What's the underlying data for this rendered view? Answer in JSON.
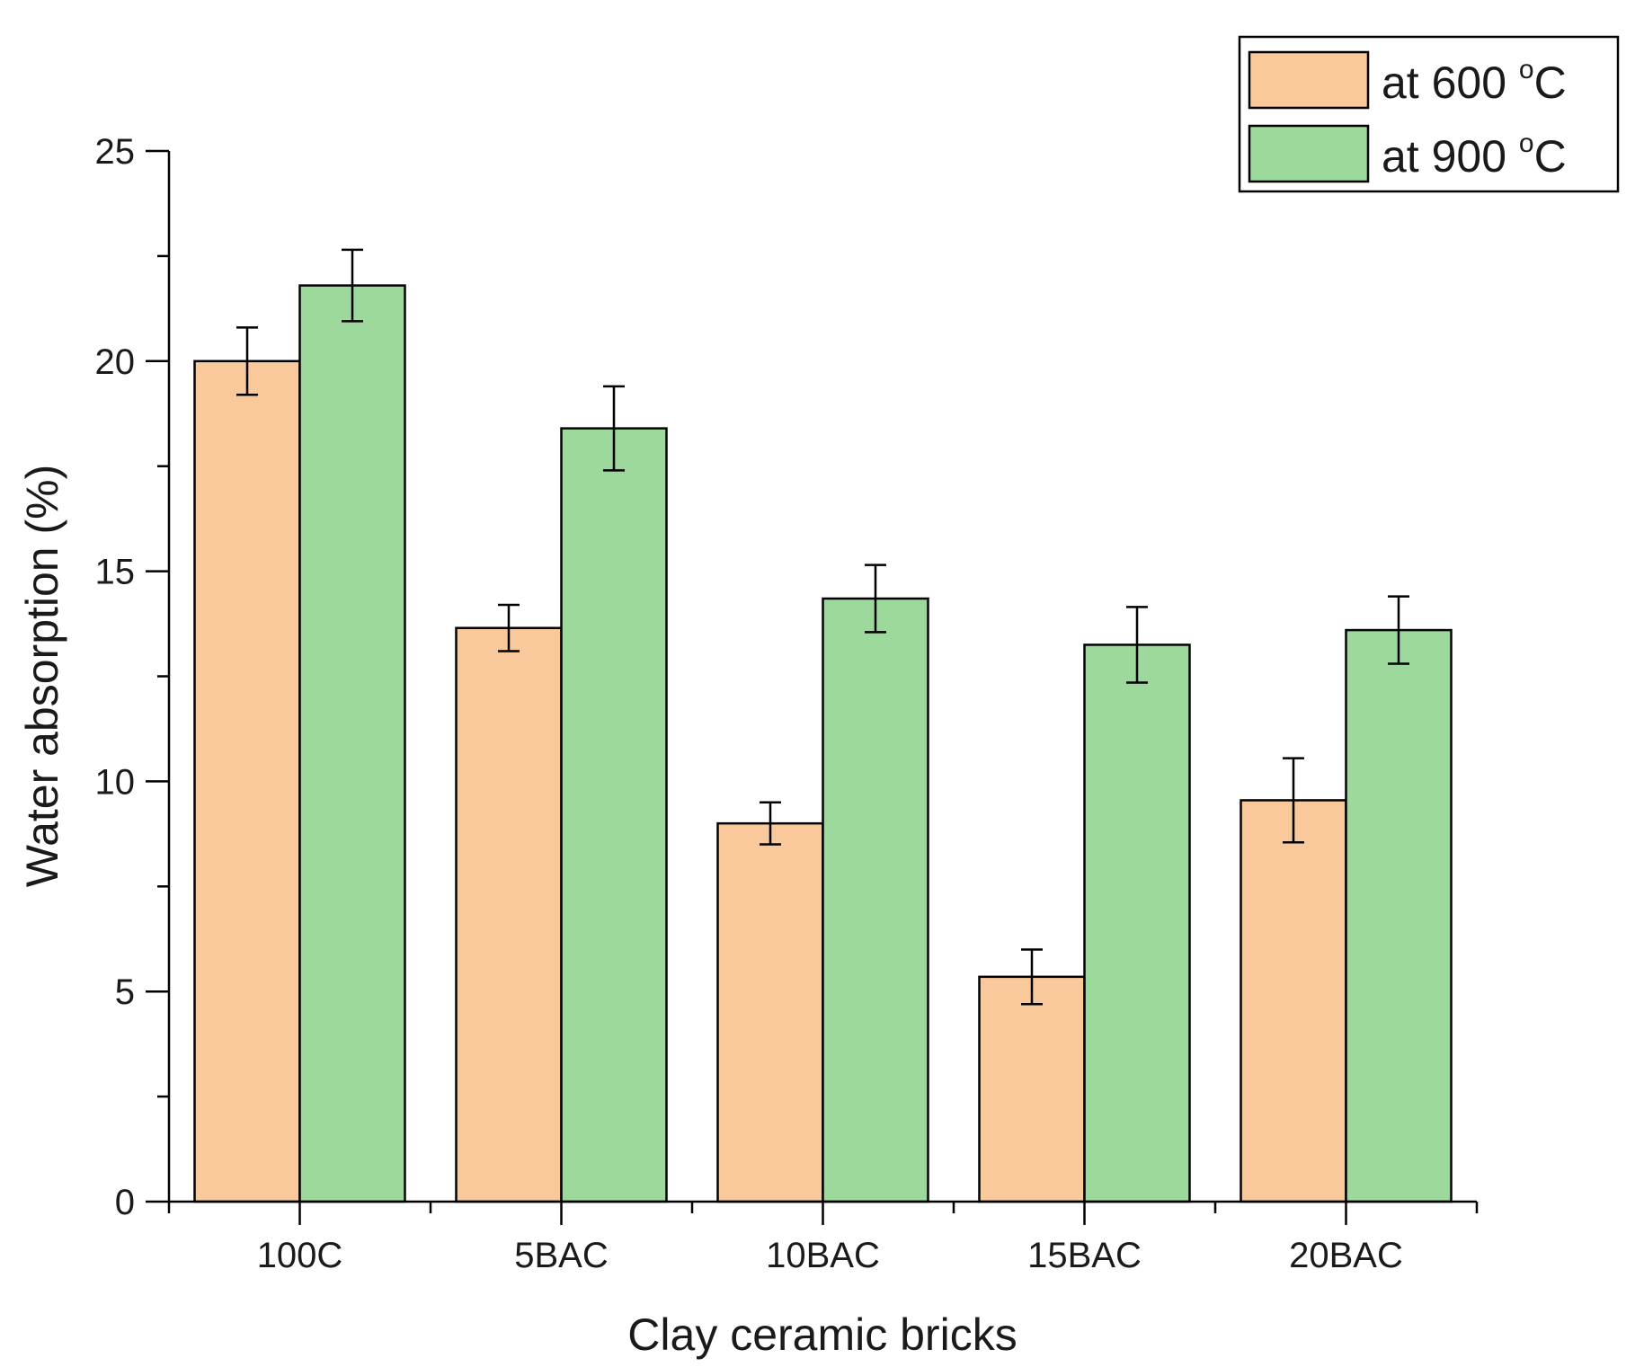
{
  "chart_data": {
    "type": "bar",
    "title": "",
    "xlabel": "Clay ceramic bricks",
    "ylabel": "Water absorption (%)",
    "ylim": [
      0,
      25
    ],
    "yticks": [
      0,
      5,
      10,
      15,
      20,
      25
    ],
    "categories": [
      "100C",
      "5BAC",
      "10BAC",
      "15BAC",
      "20BAC"
    ],
    "legend_position": "top-right",
    "series": [
      {
        "name": "at 600 °C",
        "legend_prefix": "at 600 ",
        "legend_sup": "o",
        "legend_unit": "C",
        "color": "#F9C89B",
        "values": [
          20.0,
          13.65,
          9.0,
          5.35,
          9.55
        ],
        "errors": [
          0.8,
          0.55,
          0.5,
          0.65,
          1.0
        ]
      },
      {
        "name": "at 900 °C",
        "legend_prefix": "at 900 ",
        "legend_sup": "o",
        "legend_unit": "C",
        "color": "#9DD89D",
        "values": [
          21.8,
          18.4,
          14.35,
          13.25,
          13.6
        ],
        "errors": [
          0.85,
          1.0,
          0.8,
          0.9,
          0.8
        ]
      }
    ]
  }
}
